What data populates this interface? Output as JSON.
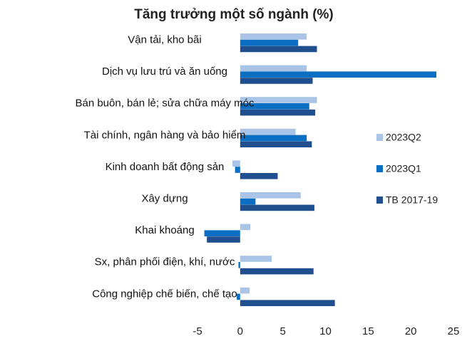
{
  "chart_data": {
    "type": "bar",
    "orientation": "horizontal",
    "title": "Tăng trưởng một số ngành (%)",
    "xlabel": "",
    "ylabel": "",
    "xlim": [
      -5,
      25
    ],
    "xticks": [
      -5,
      0,
      5,
      10,
      15,
      20,
      25
    ],
    "grid": false,
    "legend_position": "right",
    "categories": [
      "Vận tải, kho bãi",
      "Dịch vụ lưu trú và ăn uống",
      "Bán buôn, bán lẻ; sửa chữa máy móc",
      "Tài chính, ngân hàng và bảo hiểm",
      "Kinh doanh bất động sản",
      "Xây dựng",
      "Khai khoáng",
      "Sx, phân phối điện, khí, nước",
      "Công nghiệp chế biến, chế tạo"
    ],
    "series": [
      {
        "name": "2023Q2",
        "color": "#a9c4e6",
        "values": [
          7.8,
          7.8,
          9.0,
          6.5,
          -0.9,
          7.1,
          1.2,
          3.7,
          1.1
        ]
      },
      {
        "name": "2023Q1",
        "color": "#0a6fc2",
        "values": [
          6.8,
          23.0,
          8.1,
          7.8,
          -0.6,
          1.8,
          -4.2,
          -0.2,
          -0.4
        ]
      },
      {
        "name": "TB 2017-19",
        "color": "#1f4f8f",
        "values": [
          9.0,
          8.5,
          8.8,
          8.4,
          4.4,
          8.7,
          -3.9,
          8.6,
          11.1
        ]
      }
    ]
  }
}
